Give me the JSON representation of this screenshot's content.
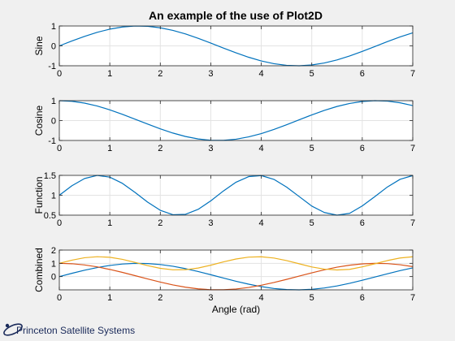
{
  "figure": {
    "title": "An example of the use of Plot2D",
    "background": "#f0f0f0",
    "logo_text": "Princeton Satellite Systems"
  },
  "chart_data": [
    {
      "type": "line",
      "ylabel": "Sine",
      "xlabel": "",
      "xlim": [
        0,
        7
      ],
      "ylim": [
        -1,
        1
      ],
      "xticks": [
        0,
        1,
        2,
        3,
        4,
        5,
        6,
        7
      ],
      "yticks": [
        -1,
        0,
        1
      ],
      "grid": true,
      "series": [
        {
          "color": "#0072bd",
          "x": [
            0,
            0.25,
            0.5,
            0.75,
            1,
            1.25,
            1.5,
            1.75,
            2,
            2.25,
            2.5,
            2.75,
            3,
            3.25,
            3.5,
            3.75,
            4,
            4.25,
            4.5,
            4.75,
            5,
            5.25,
            5.5,
            5.75,
            6,
            6.25,
            6.5,
            6.75,
            7
          ],
          "y": [
            0,
            0.247,
            0.479,
            0.682,
            0.841,
            0.949,
            0.997,
            0.984,
            0.909,
            0.778,
            0.598,
            0.382,
            0.141,
            -0.108,
            -0.351,
            -0.572,
            -0.757,
            -0.895,
            -0.978,
            -0.999,
            -0.959,
            -0.859,
            -0.706,
            -0.508,
            -0.279,
            -0.033,
            0.215,
            0.45,
            0.657
          ]
        }
      ]
    },
    {
      "type": "line",
      "ylabel": "Cosine",
      "xlabel": "",
      "xlim": [
        0,
        7
      ],
      "ylim": [
        -1,
        1
      ],
      "xticks": [
        0,
        1,
        2,
        3,
        4,
        5,
        6,
        7
      ],
      "yticks": [
        -1,
        0,
        1
      ],
      "grid": true,
      "series": [
        {
          "color": "#0072bd",
          "x": [
            0,
            0.25,
            0.5,
            0.75,
            1,
            1.25,
            1.5,
            1.75,
            2,
            2.25,
            2.5,
            2.75,
            3,
            3.25,
            3.5,
            3.75,
            4,
            4.25,
            4.5,
            4.75,
            5,
            5.25,
            5.5,
            5.75,
            6,
            6.25,
            6.5,
            6.75,
            7
          ],
          "y": [
            1,
            0.969,
            0.878,
            0.732,
            0.54,
            0.315,
            0.071,
            -0.178,
            -0.416,
            -0.628,
            -0.801,
            -0.924,
            -0.99,
            -0.994,
            -0.936,
            -0.82,
            -0.654,
            -0.446,
            -0.211,
            0.037,
            0.284,
            0.512,
            0.709,
            0.861,
            0.96,
            0.999,
            0.977,
            0.893,
            0.754
          ]
        }
      ]
    },
    {
      "type": "line",
      "ylabel": "Function",
      "xlabel": "",
      "xlim": [
        0,
        7
      ],
      "ylim": [
        0.5,
        1.5
      ],
      "xticks": [
        0,
        1,
        2,
        3,
        4,
        5,
        6,
        7
      ],
      "yticks": [
        0.5,
        1,
        1.5
      ],
      "grid": true,
      "series": [
        {
          "color": "#0072bd",
          "x": [
            0,
            0.25,
            0.5,
            0.75,
            1,
            1.25,
            1.5,
            1.75,
            2,
            2.25,
            2.5,
            2.75,
            3,
            3.25,
            3.5,
            3.75,
            4,
            4.25,
            4.5,
            4.75,
            5,
            5.25,
            5.5,
            5.75,
            6,
            6.25,
            6.5,
            6.75,
            7
          ],
          "y": [
            1,
            1.24,
            1.421,
            1.499,
            1.455,
            1.299,
            1.071,
            0.827,
            0.622,
            0.511,
            0.521,
            0.646,
            0.86,
            1.108,
            1.328,
            1.469,
            1.495,
            1.4,
            1.206,
            0.968,
            0.728,
            0.566,
            0.5,
            0.546,
            0.732,
            0.967,
            1.21,
            1.402,
            1.495
          ]
        }
      ]
    },
    {
      "type": "line",
      "ylabel": "Combined",
      "xlabel": "Angle (rad)",
      "xlim": [
        0,
        7
      ],
      "ylim": [
        -1,
        2
      ],
      "xticks": [
        0,
        1,
        2,
        3,
        4,
        5,
        6,
        7
      ],
      "yticks": [
        0,
        1,
        2
      ],
      "grid": true,
      "series": [
        {
          "color": "#0072bd",
          "x": [
            0,
            0.25,
            0.5,
            0.75,
            1,
            1.25,
            1.5,
            1.75,
            2,
            2.25,
            2.5,
            2.75,
            3,
            3.25,
            3.5,
            3.75,
            4,
            4.25,
            4.5,
            4.75,
            5,
            5.25,
            5.5,
            5.75,
            6,
            6.25,
            6.5,
            6.75,
            7
          ],
          "y": [
            0,
            0.247,
            0.479,
            0.682,
            0.841,
            0.949,
            0.997,
            0.984,
            0.909,
            0.778,
            0.598,
            0.382,
            0.141,
            -0.108,
            -0.351,
            -0.572,
            -0.757,
            -0.895,
            -0.978,
            -0.999,
            -0.959,
            -0.859,
            -0.706,
            -0.508,
            -0.279,
            -0.033,
            0.215,
            0.45,
            0.657
          ]
        },
        {
          "color": "#d95319",
          "x": [
            0,
            0.25,
            0.5,
            0.75,
            1,
            1.25,
            1.5,
            1.75,
            2,
            2.25,
            2.5,
            2.75,
            3,
            3.25,
            3.5,
            3.75,
            4,
            4.25,
            4.5,
            4.75,
            5,
            5.25,
            5.5,
            5.75,
            6,
            6.25,
            6.5,
            6.75,
            7
          ],
          "y": [
            1,
            0.969,
            0.878,
            0.732,
            0.54,
            0.315,
            0.071,
            -0.178,
            -0.416,
            -0.628,
            -0.801,
            -0.924,
            -0.99,
            -0.994,
            -0.936,
            -0.82,
            -0.654,
            -0.446,
            -0.211,
            0.037,
            0.284,
            0.512,
            0.709,
            0.861,
            0.96,
            0.999,
            0.977,
            0.893,
            0.754
          ]
        },
        {
          "color": "#edb120",
          "x": [
            0,
            0.25,
            0.5,
            0.75,
            1,
            1.25,
            1.5,
            1.75,
            2,
            2.25,
            2.5,
            2.75,
            3,
            3.25,
            3.5,
            3.75,
            4,
            4.25,
            4.5,
            4.75,
            5,
            5.25,
            5.5,
            5.75,
            6,
            6.25,
            6.5,
            6.75,
            7
          ],
          "y": [
            1,
            1.24,
            1.421,
            1.499,
            1.455,
            1.299,
            1.071,
            0.827,
            0.622,
            0.511,
            0.521,
            0.646,
            0.86,
            1.108,
            1.328,
            1.469,
            1.495,
            1.4,
            1.206,
            0.968,
            0.728,
            0.566,
            0.5,
            0.546,
            0.732,
            0.967,
            1.21,
            1.402,
            1.495
          ]
        }
      ]
    }
  ]
}
